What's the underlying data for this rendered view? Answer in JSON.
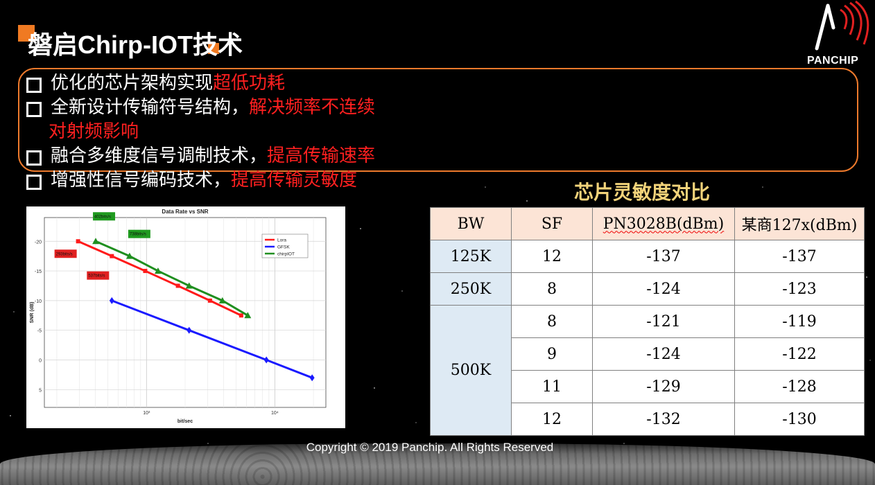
{
  "slide": {
    "title": "磐启Chirp-IOT技术",
    "logo_text": "PANCHIP",
    "accent_color": "#f07a22",
    "copyright": "Copyright © 2019 Panchip. All Rights Reserved"
  },
  "bullets": [
    {
      "plain": "优化的芯片架构实现",
      "highlight": "超低功耗"
    },
    {
      "plain": "全新设计传输符号结构，",
      "highlight": "解决频率不连续",
      "highlight_cont": "对射频影响"
    },
    {
      "plain": "融合多维度信号调制技术，",
      "highlight": "提高传输速率"
    },
    {
      "plain": "增强性信号编码技术，",
      "highlight": "提高传输灵敏度"
    }
  ],
  "chart_data": {
    "type": "line",
    "title": "Data Rate vs SNR",
    "xlabel": "bit/sec",
    "ylabel": "SNR (dB)",
    "x_scale": "log",
    "xlim": [
      160,
      25000
    ],
    "ylim": [
      8,
      -24
    ],
    "x_tick_labels": [
      "10³",
      "10⁴"
    ],
    "y_tick_labels": [
      "-20",
      "-15",
      "-10",
      "-5",
      "0",
      "5"
    ],
    "grid": true,
    "legend_position": "top-right",
    "series": [
      {
        "name": "Lora",
        "color": "#ff1a1a",
        "marker": "square",
        "x": [
          293,
          537,
          977,
          1758,
          3125,
          5469
        ],
        "y": [
          -20,
          -17.5,
          -15,
          -12.5,
          -10,
          -7.5
        ]
      },
      {
        "name": "GFSK",
        "color": "#1a1aff",
        "marker": "diamond",
        "x": [
          537,
          2148,
          8594,
          19531
        ],
        "y": [
          -10,
          -5,
          0,
          3
        ]
      },
      {
        "name": "chirpIOT",
        "color": "#1f8f1f",
        "marker": "triangle",
        "x": [
          402,
          738,
          1230,
          2148,
          3906,
          6152
        ],
        "y": [
          -20,
          -17.5,
          -15,
          -12.5,
          -10,
          -7.5
        ]
      }
    ],
    "annotations": [
      {
        "text": "293bits/s",
        "x": 293,
        "y": -20
      },
      {
        "text": "537bits/s",
        "x": 537,
        "y": -17.5
      },
      {
        "text": "402bits/s",
        "x": 402,
        "y": -20
      },
      {
        "text": "738bits/s",
        "x": 738,
        "y": -17.5
      }
    ]
  },
  "table": {
    "caption": "芯片灵敏度对比",
    "headers": [
      "BW",
      "SF",
      "PN3028B(dBm)",
      "某商127x(dBm)"
    ],
    "bw_labels": [
      "125K",
      "250K",
      "500K"
    ],
    "rows": [
      {
        "sf": "12",
        "pn": "-137",
        "other": "-137"
      },
      {
        "sf": "8",
        "pn": "-124",
        "other": "-123"
      },
      {
        "sf": "8",
        "pn": "-121",
        "other": "-119"
      },
      {
        "sf": "9",
        "pn": "-124",
        "other": "-122"
      },
      {
        "sf": "11",
        "pn": "-129",
        "other": "-128"
      },
      {
        "sf": "12",
        "pn": "-132",
        "other": "-130"
      }
    ]
  }
}
